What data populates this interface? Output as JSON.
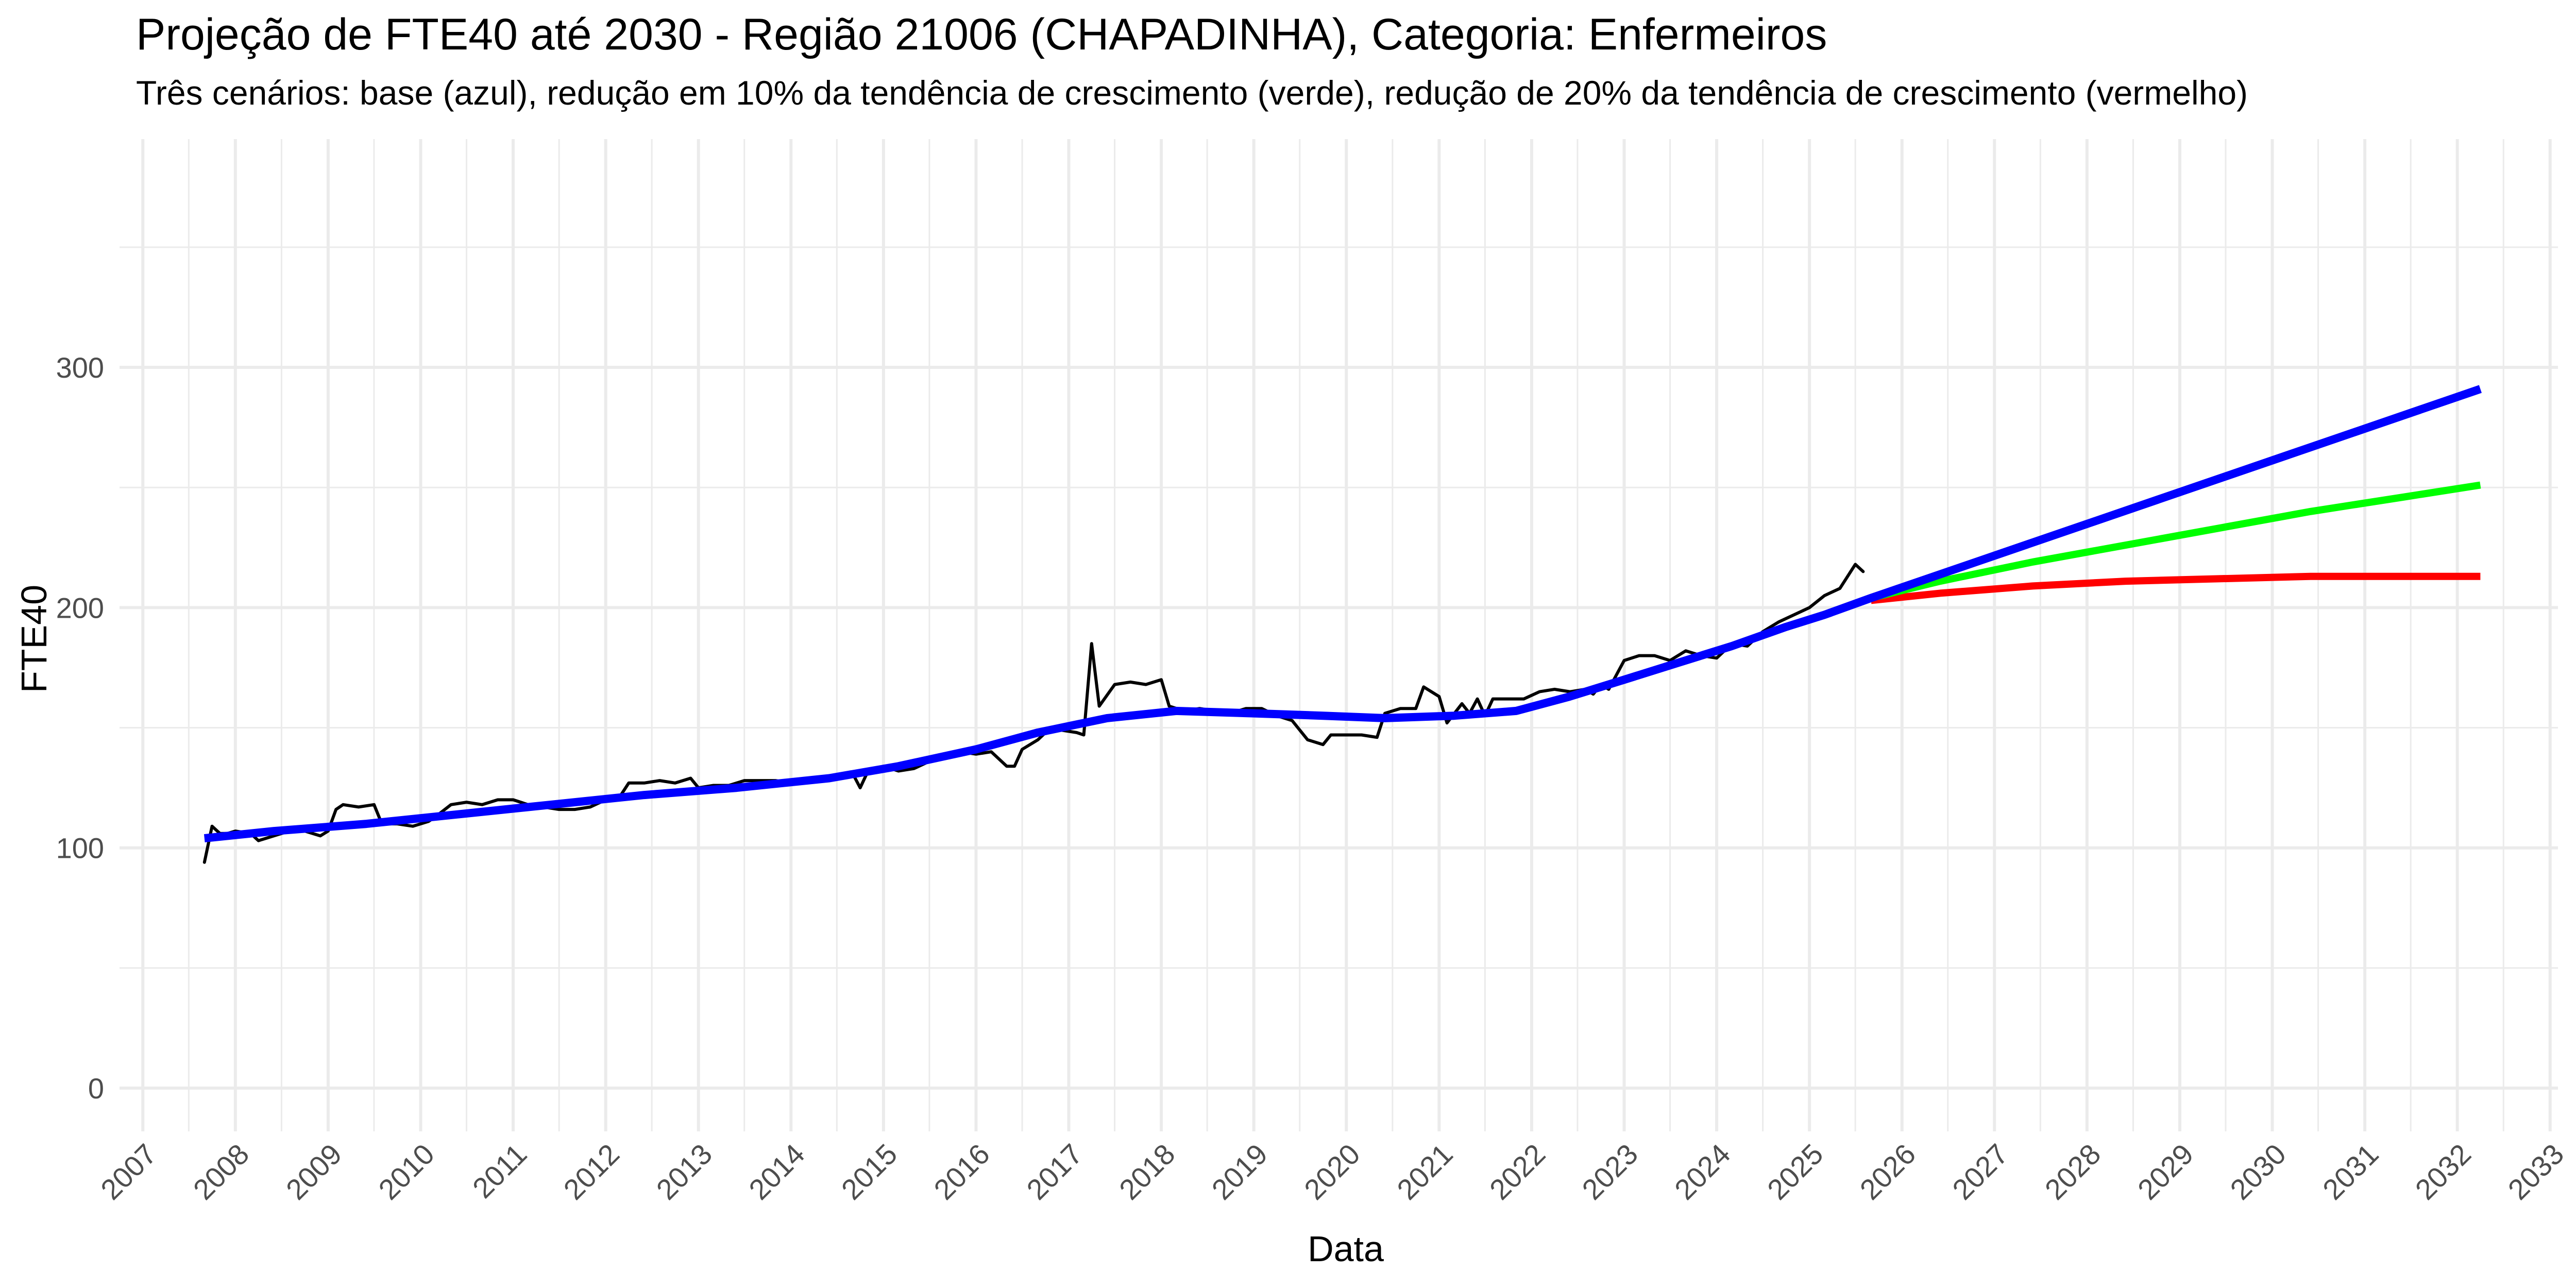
{
  "chart_data": {
    "type": "line",
    "title": "Projeção de FTE40 até 2030 - Região 21006 (CHAPADINHA), Categoria: Enfermeiros",
    "subtitle": "Três cenários: base (azul), redução em 10% da tendência de crescimento (verde), redução de 20% da tendência de crescimento (vermelho)",
    "xlabel": "Data",
    "ylabel": "FTE40",
    "x_ticks": [
      "2007",
      "2008",
      "2009",
      "2010",
      "2011",
      "2012",
      "2013",
      "2014",
      "2015",
      "2016",
      "2017",
      "2018",
      "2019",
      "2020",
      "2021",
      "2022",
      "2023",
      "2024",
      "2025",
      "2026",
      "2027",
      "2028",
      "2029",
      "2030",
      "2031",
      "2032",
      "2033"
    ],
    "y_ticks": [
      0,
      100,
      200,
      300
    ],
    "xlim": [
      "2006-10-01",
      "2033-02-01"
    ],
    "ylim": [
      -18,
      395
    ],
    "grid": true,
    "legend": "none",
    "colors": {
      "observed": "#000000",
      "trend": "#0000ff",
      "scenario_10": "#00ff00",
      "scenario_20": "#ff0000"
    },
    "series": [
      {
        "key": "observed",
        "points": [
          [
            "2007-09-01",
            94
          ],
          [
            "2007-10-01",
            109
          ],
          [
            "2007-11-01",
            106
          ],
          [
            "2007-12-01",
            106
          ],
          [
            "2008-01-01",
            107
          ],
          [
            "2008-03-01",
            106
          ],
          [
            "2008-04-01",
            103
          ],
          [
            "2008-06-01",
            105
          ],
          [
            "2008-08-01",
            107
          ],
          [
            "2008-10-01",
            107
          ],
          [
            "2008-12-01",
            105
          ],
          [
            "2009-01-01",
            107
          ],
          [
            "2009-02-01",
            116
          ],
          [
            "2009-03-01",
            118
          ],
          [
            "2009-05-01",
            117
          ],
          [
            "2009-07-01",
            118
          ],
          [
            "2009-08-01",
            110
          ],
          [
            "2009-10-01",
            110
          ],
          [
            "2009-12-01",
            109
          ],
          [
            "2010-02-01",
            111
          ],
          [
            "2010-03-01",
            113
          ],
          [
            "2010-05-01",
            118
          ],
          [
            "2010-07-01",
            119
          ],
          [
            "2010-09-01",
            118
          ],
          [
            "2010-11-01",
            120
          ],
          [
            "2011-01-01",
            120
          ],
          [
            "2011-03-01",
            118
          ],
          [
            "2011-05-01",
            117
          ],
          [
            "2011-07-01",
            116
          ],
          [
            "2011-09-01",
            116
          ],
          [
            "2011-11-01",
            117
          ],
          [
            "2012-01-01",
            120
          ],
          [
            "2012-03-01",
            122
          ],
          [
            "2012-04-01",
            127
          ],
          [
            "2012-06-01",
            127
          ],
          [
            "2012-08-01",
            128
          ],
          [
            "2012-10-01",
            127
          ],
          [
            "2012-12-01",
            129
          ],
          [
            "2013-01-01",
            125
          ],
          [
            "2013-03-01",
            126
          ],
          [
            "2013-05-01",
            126
          ],
          [
            "2013-07-01",
            128
          ],
          [
            "2013-09-01",
            128
          ],
          [
            "2013-11-01",
            128
          ],
          [
            "2014-01-01",
            127
          ],
          [
            "2014-03-01",
            127
          ],
          [
            "2014-05-01",
            128
          ],
          [
            "2014-07-01",
            130
          ],
          [
            "2014-09-01",
            131
          ],
          [
            "2014-10-01",
            125
          ],
          [
            "2014-11-01",
            132
          ],
          [
            "2015-01-01",
            134
          ],
          [
            "2015-03-01",
            132
          ],
          [
            "2015-05-01",
            133
          ],
          [
            "2015-07-01",
            136
          ],
          [
            "2015-09-01",
            139
          ],
          [
            "2015-11-01",
            140
          ],
          [
            "2016-01-01",
            139
          ],
          [
            "2016-03-01",
            140
          ],
          [
            "2016-05-01",
            134
          ],
          [
            "2016-06-01",
            134
          ],
          [
            "2016-07-01",
            141
          ],
          [
            "2016-09-01",
            145
          ],
          [
            "2016-10-01",
            148
          ],
          [
            "2016-12-01",
            149
          ],
          [
            "2017-02-01",
            148
          ],
          [
            "2017-03-01",
            147
          ],
          [
            "2017-04-01",
            185
          ],
          [
            "2017-05-01",
            159
          ],
          [
            "2017-07-01",
            168
          ],
          [
            "2017-09-01",
            169
          ],
          [
            "2017-11-01",
            168
          ],
          [
            "2018-01-01",
            170
          ],
          [
            "2018-02-01",
            159
          ],
          [
            "2018-04-01",
            157
          ],
          [
            "2018-06-01",
            158
          ],
          [
            "2018-08-01",
            157
          ],
          [
            "2018-10-01",
            156
          ],
          [
            "2018-12-01",
            158
          ],
          [
            "2019-02-01",
            158
          ],
          [
            "2019-04-01",
            155
          ],
          [
            "2019-06-01",
            153
          ],
          [
            "2019-08-01",
            145
          ],
          [
            "2019-10-01",
            143
          ],
          [
            "2019-11-01",
            147
          ],
          [
            "2020-01-01",
            147
          ],
          [
            "2020-03-01",
            147
          ],
          [
            "2020-05-01",
            146
          ],
          [
            "2020-06-01",
            156
          ],
          [
            "2020-08-01",
            158
          ],
          [
            "2020-10-01",
            158
          ],
          [
            "2020-11-01",
            167
          ],
          [
            "2021-01-01",
            163
          ],
          [
            "2021-02-01",
            152
          ],
          [
            "2021-04-01",
            160
          ],
          [
            "2021-05-01",
            156
          ],
          [
            "2021-06-01",
            162
          ],
          [
            "2021-07-01",
            155
          ],
          [
            "2021-08-01",
            162
          ],
          [
            "2021-10-01",
            162
          ],
          [
            "2021-12-01",
            162
          ],
          [
            "2022-02-01",
            165
          ],
          [
            "2022-04-01",
            166
          ],
          [
            "2022-06-01",
            165
          ],
          [
            "2022-08-01",
            166
          ],
          [
            "2022-09-01",
            164
          ],
          [
            "2022-10-01",
            168
          ],
          [
            "2022-11-01",
            166
          ],
          [
            "2023-01-01",
            178
          ],
          [
            "2023-03-01",
            180
          ],
          [
            "2023-05-01",
            180
          ],
          [
            "2023-07-01",
            178
          ],
          [
            "2023-09-01",
            182
          ],
          [
            "2023-11-01",
            180
          ],
          [
            "2024-01-01",
            179
          ],
          [
            "2024-03-01",
            185
          ],
          [
            "2024-05-01",
            184
          ],
          [
            "2024-07-01",
            190
          ],
          [
            "2024-09-01",
            194
          ],
          [
            "2024-11-01",
            197
          ],
          [
            "2025-01-01",
            200
          ],
          [
            "2025-03-01",
            205
          ],
          [
            "2025-05-01",
            208
          ],
          [
            "2025-07-01",
            218
          ],
          [
            "2025-08-01",
            215
          ]
        ]
      },
      {
        "key": "trend",
        "points": [
          [
            "2007-09-01",
            104
          ],
          [
            "2008-06-01",
            107
          ],
          [
            "2009-06-01",
            110
          ],
          [
            "2010-06-01",
            114
          ],
          [
            "2011-06-01",
            118
          ],
          [
            "2012-06-01",
            122
          ],
          [
            "2013-06-01",
            125
          ],
          [
            "2014-06-01",
            129
          ],
          [
            "2015-03-01",
            134
          ],
          [
            "2016-01-01",
            141
          ],
          [
            "2016-09-01",
            148
          ],
          [
            "2017-06-01",
            154
          ],
          [
            "2018-03-01",
            157
          ],
          [
            "2019-01-01",
            156
          ],
          [
            "2019-10-01",
            155
          ],
          [
            "2020-06-01",
            154
          ],
          [
            "2021-03-01",
            155
          ],
          [
            "2021-11-01",
            157
          ],
          [
            "2022-06-01",
            163
          ],
          [
            "2023-01-01",
            170
          ],
          [
            "2023-08-01",
            177
          ],
          [
            "2024-03-01",
            184
          ],
          [
            "2024-10-01",
            192
          ],
          [
            "2025-03-01",
            197
          ],
          [
            "2025-09-01",
            204
          ],
          [
            "2032-04-01",
            291
          ]
        ]
      },
      {
        "key": "scenario_10",
        "points": [
          [
            "2025-09-01",
            204
          ],
          [
            "2026-06-01",
            211
          ],
          [
            "2027-06-01",
            219
          ],
          [
            "2028-06-01",
            226
          ],
          [
            "2029-06-01",
            233
          ],
          [
            "2030-06-01",
            240
          ],
          [
            "2031-06-01",
            246
          ],
          [
            "2032-04-01",
            251
          ]
        ]
      },
      {
        "key": "scenario_20",
        "points": [
          [
            "2025-09-01",
            203
          ],
          [
            "2026-06-01",
            206
          ],
          [
            "2027-06-01",
            209
          ],
          [
            "2028-06-01",
            211
          ],
          [
            "2029-06-01",
            212
          ],
          [
            "2030-06-01",
            213
          ],
          [
            "2031-06-01",
            213
          ],
          [
            "2032-04-01",
            213
          ]
        ]
      }
    ]
  }
}
